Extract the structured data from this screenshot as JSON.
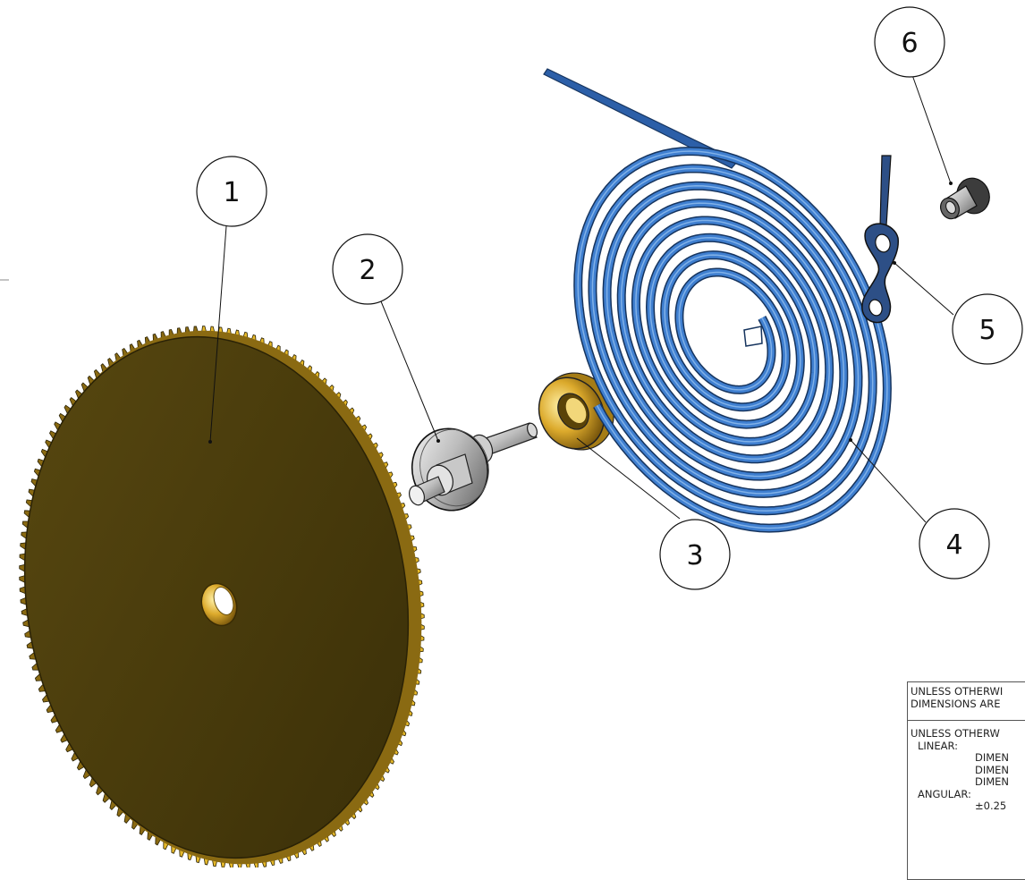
{
  "balloons": [
    {
      "number": "1",
      "part": "gear"
    },
    {
      "number": "2",
      "part": "arbor"
    },
    {
      "number": "3",
      "part": "collet"
    },
    {
      "number": "4",
      "part": "mainspring"
    },
    {
      "number": "5",
      "part": "spring-hook"
    },
    {
      "number": "6",
      "part": "bushing"
    }
  ],
  "colors": {
    "gear_face": "#4a3c0b",
    "gear_teeth": "#e6b92a",
    "brass": "#d9a82e",
    "spring": "#3f7fd0",
    "spring_dark": "#16345e",
    "steel": "#b9b9b9",
    "steel_dark": "#5b5b5b",
    "hook": "#2d4f86"
  },
  "title_block": {
    "line1": "UNLESS OTHERWI",
    "line2": "DIMENSIONS ARE",
    "line3": "UNLESS OTHERW",
    "linear_label": "LINEAR:",
    "dim1": "DIMEN",
    "dim2": "DIMEN",
    "dim3": "DIMEN",
    "angular_label": "ANGULAR:",
    "angular_value": "±0.25"
  }
}
